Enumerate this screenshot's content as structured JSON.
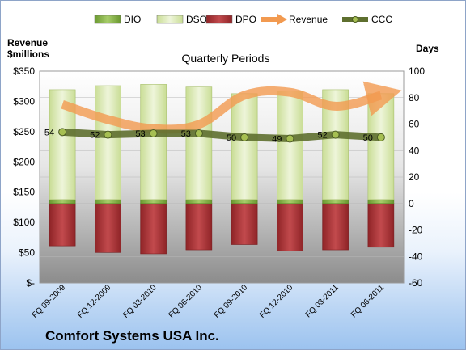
{
  "chart_data": {
    "type": "bar",
    "title": "Quarterly Periods",
    "ylabel_left": "Revenue\n$millions",
    "ylabel_right": "Days",
    "y_left": {
      "min": 0,
      "max": 350,
      "step": 50,
      "tick_labels": [
        "$-",
        "$50",
        "$100",
        "$150",
        "$200",
        "$250",
        "$300",
        "$350"
      ]
    },
    "y_right": {
      "min": -60,
      "max": 100,
      "step": 20,
      "tick_labels": [
        "-60",
        "-40",
        "-20",
        "0",
        "20",
        "40",
        "60",
        "80",
        "100"
      ]
    },
    "categories": [
      "FQ 09-2009",
      "FQ 12-2009",
      "FQ 03-2010",
      "FQ 06-2010",
      "FQ 09-2010",
      "FQ 12-2010",
      "FQ 03-2011",
      "FQ 06-2011"
    ],
    "legend": [
      {
        "name": "DIO",
        "kind": "bar",
        "color": "#7fae3e"
      },
      {
        "name": "DSO",
        "kind": "bar",
        "color": "#d7e7b0"
      },
      {
        "name": "DPO",
        "kind": "bar",
        "color": "#b5393c"
      },
      {
        "name": "Revenue",
        "kind": "arrow",
        "color": "#f29a50"
      },
      {
        "name": "CCC",
        "kind": "line",
        "color": "#5e6f2f"
      }
    ],
    "series": [
      {
        "name": "DIO",
        "axis": "right",
        "values": [
          3,
          3,
          3,
          3,
          3,
          3,
          3,
          3
        ]
      },
      {
        "name": "DSO",
        "axis": "right",
        "values": [
          83,
          86,
          87,
          85,
          80,
          82,
          83,
          80
        ]
      },
      {
        "name": "DPO",
        "axis": "right",
        "values": [
          -32,
          -37,
          -38,
          -35,
          -31,
          -36,
          -35,
          -33
        ]
      },
      {
        "name": "Revenue",
        "axis": "left",
        "values": [
          295,
          270,
          255,
          262,
          310,
          315,
          292,
          310
        ]
      },
      {
        "name": "CCC",
        "axis": "right",
        "values": [
          54,
          52,
          53,
          53,
          50,
          49,
          52,
          50
        ]
      }
    ],
    "ccc_labels": [
      "54",
      "52",
      "53",
      "53",
      "50",
      "49",
      "52",
      "50"
    ]
  },
  "footer": {
    "company": "Comfort Systems USA Inc."
  }
}
